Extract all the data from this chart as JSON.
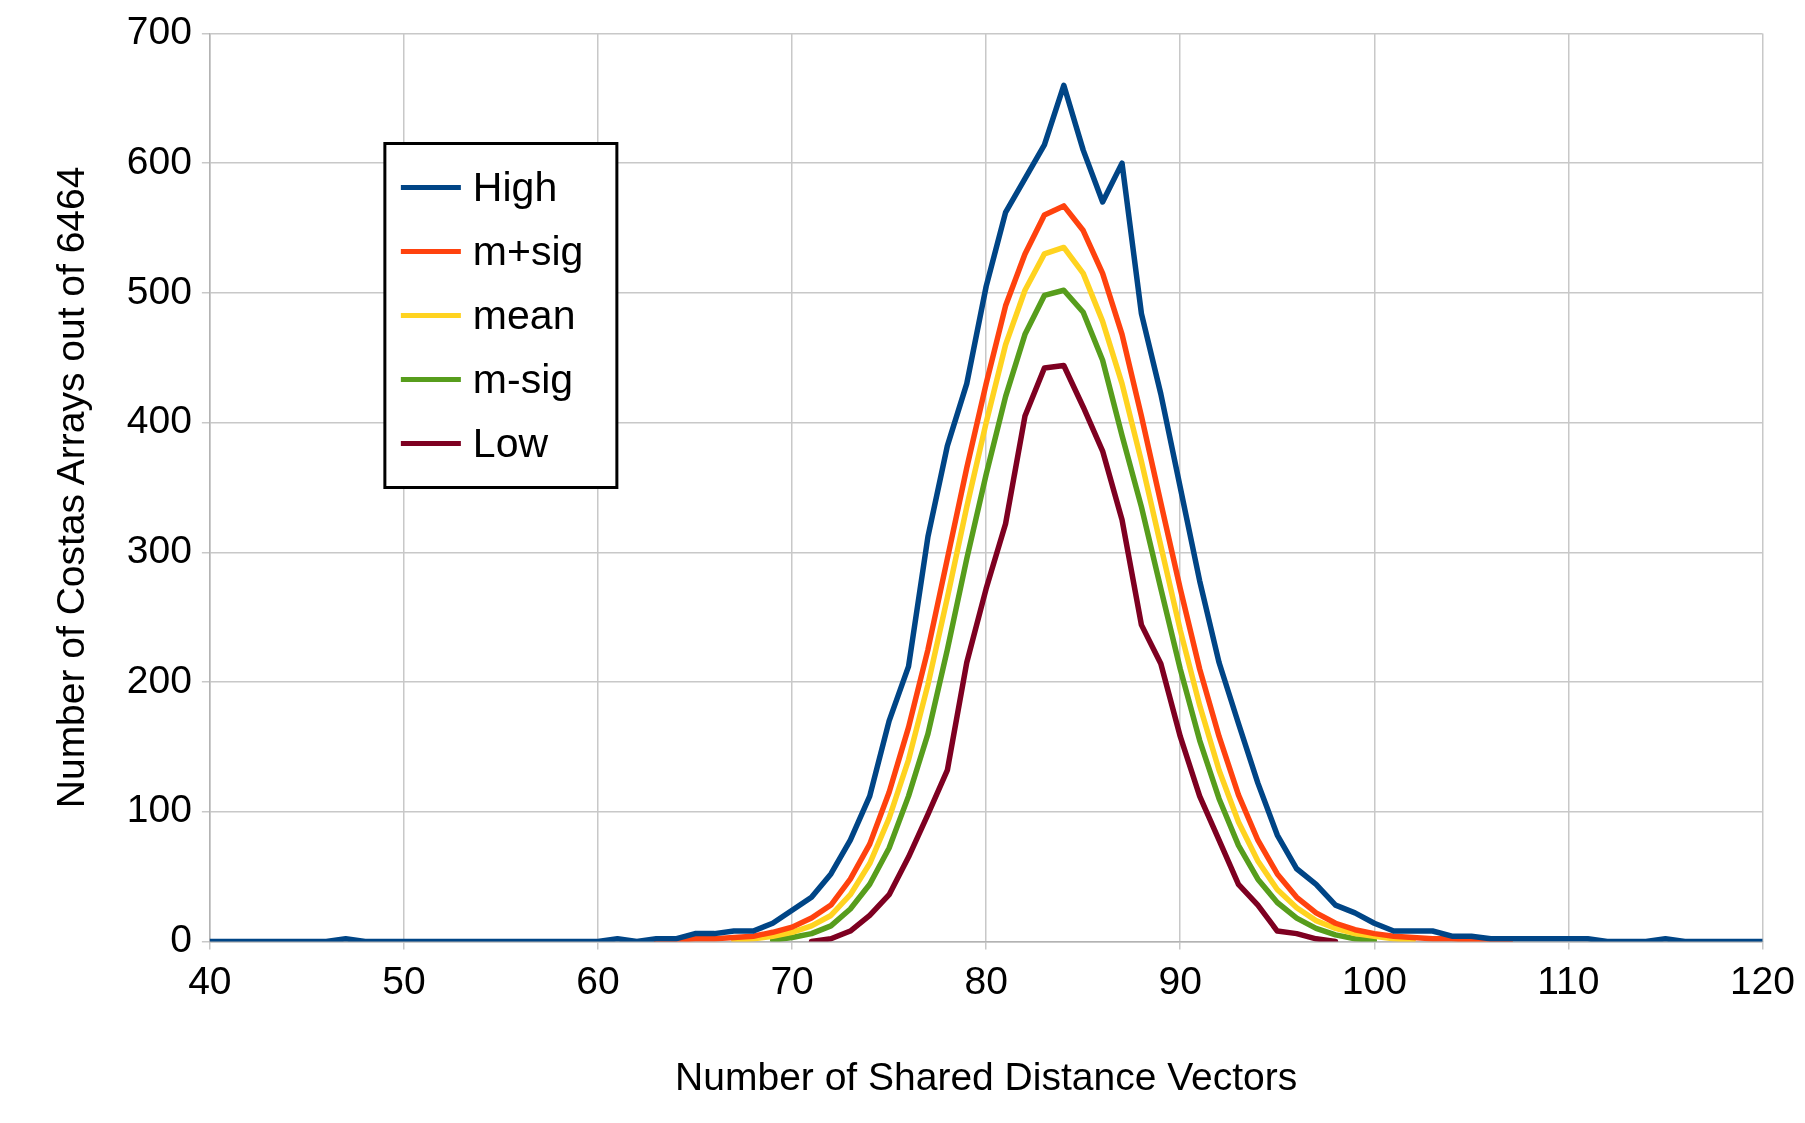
{
  "chart_data": {
    "type": "line",
    "xlabel": "Number of Shared Distance Vectors",
    "ylabel": "Number of Costas Arrays out of 6464",
    "x": [
      40,
      41,
      42,
      43,
      44,
      45,
      46,
      47,
      48,
      49,
      50,
      51,
      52,
      53,
      54,
      55,
      56,
      57,
      58,
      59,
      60,
      61,
      62,
      63,
      64,
      65,
      66,
      67,
      68,
      69,
      70,
      71,
      72,
      73,
      74,
      75,
      76,
      77,
      78,
      79,
      80,
      81,
      82,
      83,
      84,
      85,
      86,
      87,
      88,
      89,
      90,
      91,
      92,
      93,
      94,
      95,
      96,
      97,
      98,
      99,
      100,
      101,
      102,
      103,
      104,
      105,
      106,
      107,
      108,
      109,
      110,
      111,
      112,
      113,
      114,
      115,
      116,
      117,
      118,
      119,
      120
    ],
    "series": [
      {
        "name": "High",
        "color": "#004586",
        "values": [
          0,
          0,
          0,
          0,
          0,
          0,
          0,
          2,
          0,
          0,
          0,
          0,
          0,
          0,
          0,
          0,
          0,
          0,
          0,
          0,
          0,
          2,
          0,
          2,
          2,
          6,
          6,
          8,
          8,
          14,
          24,
          34,
          52,
          78,
          112,
          170,
          212,
          312,
          382,
          430,
          505,
          562,
          588,
          614,
          660,
          610,
          570,
          600,
          484,
          422,
          350,
          278,
          215,
          168,
          122,
          82,
          56,
          44,
          28,
          22,
          14,
          8,
          8,
          8,
          4,
          4,
          2,
          2,
          2,
          2,
          2,
          2,
          0,
          0,
          0,
          2,
          0,
          0,
          0,
          0,
          0
        ]
      },
      {
        "name": "m+sig",
        "color": "#ff420e",
        "values": [
          null,
          null,
          null,
          null,
          null,
          null,
          null,
          null,
          null,
          null,
          null,
          null,
          null,
          null,
          null,
          null,
          null,
          null,
          null,
          null,
          null,
          null,
          null,
          1,
          1,
          2,
          2,
          3,
          4,
          7,
          11,
          18,
          28,
          48,
          75,
          115,
          165,
          225,
          295,
          365,
          430,
          490,
          530,
          560,
          567,
          548,
          515,
          468,
          405,
          338,
          272,
          210,
          158,
          113,
          78,
          52,
          34,
          22,
          14,
          9,
          6,
          4,
          3,
          2,
          2,
          1,
          0,
          0,
          null,
          null,
          null,
          null,
          null,
          null,
          null,
          null,
          null,
          null,
          null,
          null,
          null
        ]
      },
      {
        "name": "mean",
        "color": "#ffd320",
        "values": [
          null,
          null,
          null,
          null,
          null,
          null,
          null,
          null,
          null,
          null,
          null,
          null,
          null,
          null,
          null,
          null,
          null,
          null,
          null,
          null,
          null,
          null,
          null,
          null,
          null,
          null,
          null,
          1,
          2,
          4,
          7,
          12,
          20,
          36,
          60,
          95,
          140,
          198,
          265,
          335,
          400,
          460,
          502,
          530,
          535,
          515,
          478,
          430,
          370,
          305,
          240,
          182,
          132,
          92,
          62,
          40,
          26,
          16,
          10,
          6,
          4,
          2,
          1,
          null,
          null,
          null,
          null,
          null,
          null,
          null,
          null,
          null,
          null,
          null,
          null,
          null,
          null,
          null,
          null,
          null,
          null
        ]
      },
      {
        "name": "m-sig",
        "color": "#579d1c",
        "values": [
          null,
          null,
          null,
          null,
          null,
          null,
          null,
          null,
          null,
          null,
          null,
          null,
          null,
          null,
          null,
          null,
          null,
          null,
          null,
          null,
          null,
          null,
          null,
          null,
          null,
          null,
          null,
          null,
          null,
          1,
          3,
          6,
          12,
          25,
          44,
          72,
          112,
          160,
          225,
          295,
          360,
          420,
          468,
          498,
          502,
          485,
          448,
          390,
          335,
          272,
          210,
          155,
          110,
          74,
          48,
          30,
          18,
          10,
          5,
          2,
          1,
          null,
          null,
          null,
          null,
          null,
          null,
          null,
          null,
          null,
          null,
          null,
          null,
          null,
          null,
          null,
          null,
          null,
          null,
          null,
          null
        ]
      },
      {
        "name": "Low",
        "color": "#7e0021",
        "values": [
          null,
          null,
          null,
          null,
          null,
          null,
          null,
          null,
          null,
          null,
          null,
          null,
          null,
          null,
          null,
          null,
          null,
          null,
          null,
          null,
          null,
          null,
          null,
          null,
          null,
          null,
          null,
          null,
          null,
          null,
          null,
          0,
          2,
          8,
          20,
          36,
          65,
          98,
          132,
          215,
          272,
          322,
          405,
          442,
          444,
          412,
          378,
          325,
          244,
          214,
          158,
          112,
          78,
          44,
          28,
          8,
          6,
          2,
          0,
          null,
          null,
          null,
          null,
          null,
          null,
          null,
          null,
          null,
          null,
          null,
          null,
          null,
          null,
          null,
          null,
          null,
          null,
          null,
          null,
          null,
          null
        ]
      }
    ],
    "xlim": [
      40,
      120
    ],
    "xticks": [
      40,
      50,
      60,
      70,
      80,
      90,
      100,
      110,
      120
    ],
    "ylim": [
      0,
      700
    ],
    "yticks": [
      0,
      100,
      200,
      300,
      400,
      500,
      600,
      700
    ],
    "grid": true,
    "legend": "top left",
    "marker": "none",
    "line_style": "solid"
  }
}
